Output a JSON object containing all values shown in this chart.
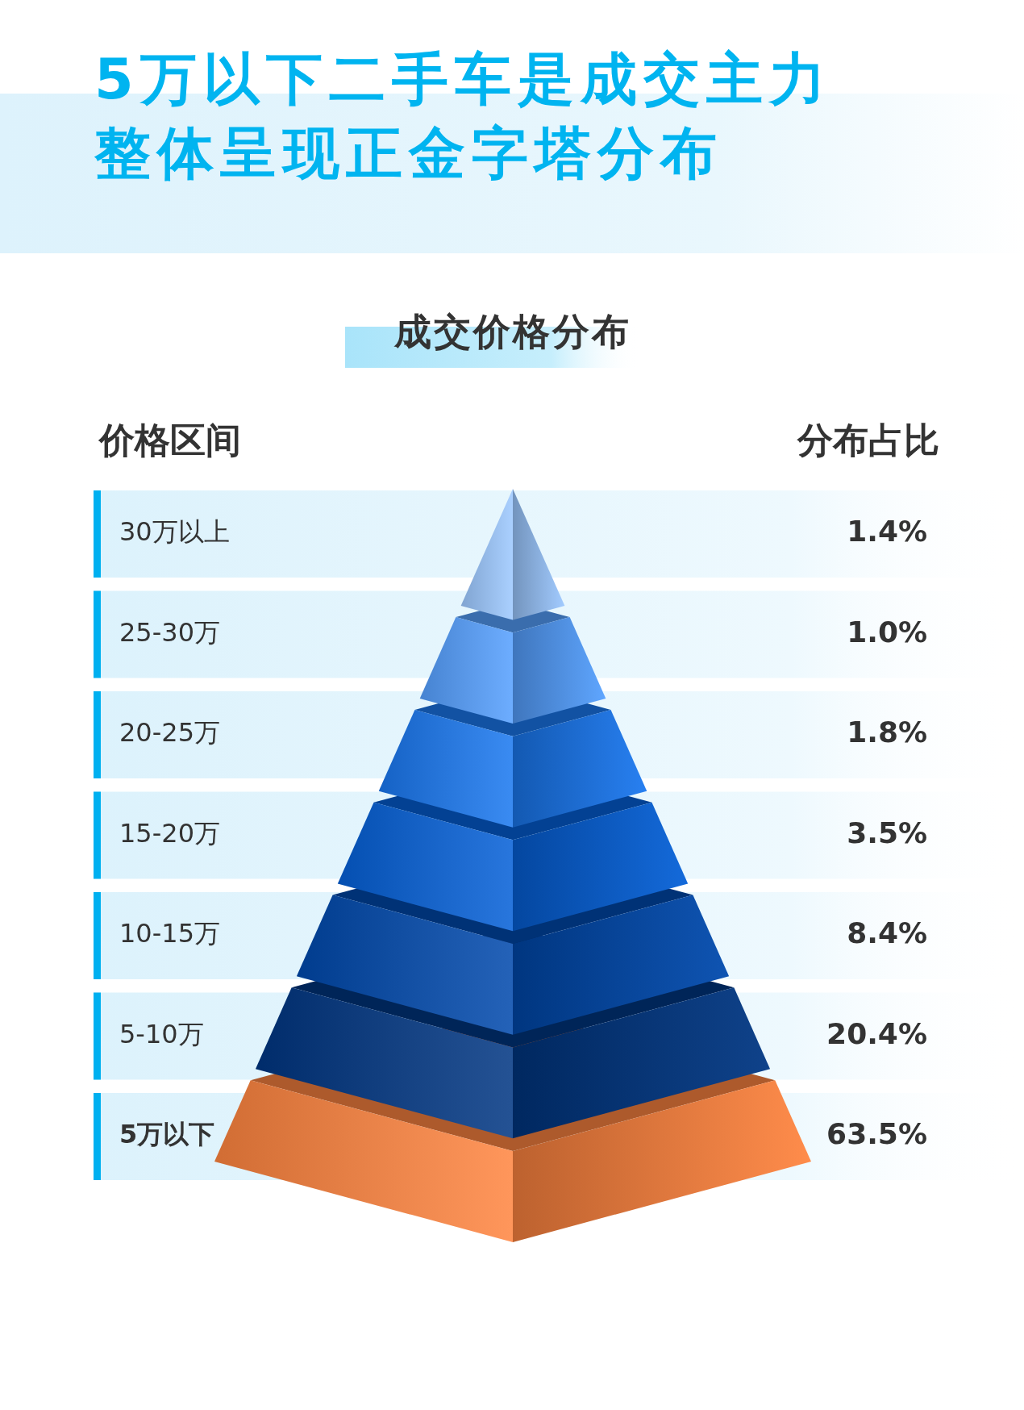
{
  "chart_data": {
    "type": "other",
    "title": "5万以下二手车是成交主力整体呈现正金字塔分布",
    "subtitle": "成交价格分布",
    "xlabel": "价格区间",
    "ylabel": "分布占比",
    "categories": [
      "30万以上",
      "25-30万",
      "20-25万",
      "15-20万",
      "10-15万",
      "5-10万",
      "5万以下"
    ],
    "values": [
      1.4,
      1.0,
      1.8,
      3.5,
      8.4,
      20.4,
      63.5
    ],
    "value_labels": [
      "1.4%",
      "1.0%",
      "1.8%",
      "3.5%",
      "8.4%",
      "20.4%",
      "63.5%"
    ],
    "colors": [
      "#9cc8ff",
      "#55a0ff",
      "#1a78f0",
      "#0560d8",
      "#0049ad",
      "#003682",
      "#ff8540"
    ]
  }
}
